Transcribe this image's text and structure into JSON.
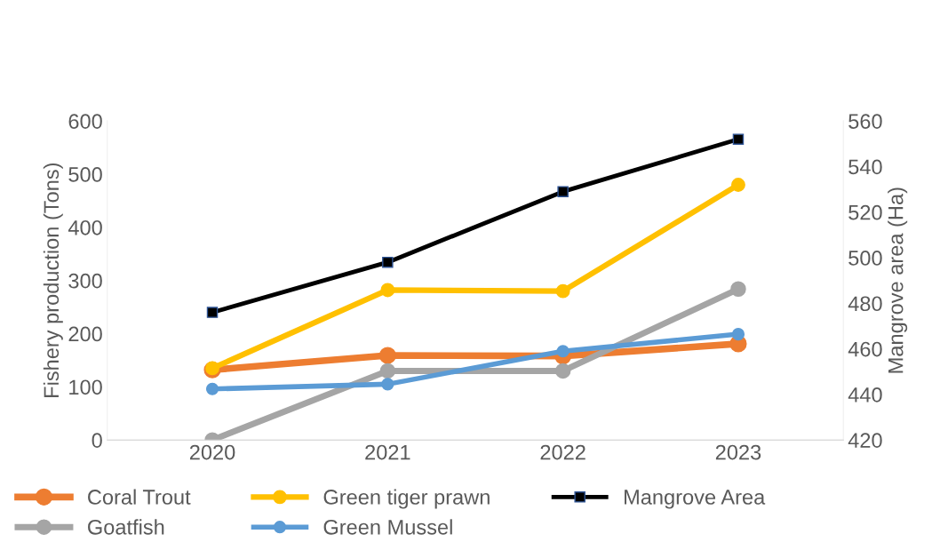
{
  "chart_data": {
    "type": "line",
    "ylabel": "Fishery production (Tons)",
    "y2label": "Mangrove area (Ha)",
    "categories": [
      "2020",
      "2021",
      "2022",
      "2023"
    ],
    "series": [
      {
        "name": "Coral Trout",
        "color": "#ed7d31",
        "marker": "circle",
        "values": [
          132,
          159,
          158,
          181
        ]
      },
      {
        "name": "Goatfish",
        "color": "#a5a5a5",
        "marker": "circle",
        "values": [
          0,
          130,
          130,
          284
        ]
      },
      {
        "name": "Green tiger prawn",
        "color": "#ffc000",
        "marker": "circle",
        "values": [
          135,
          282,
          280,
          480
        ]
      },
      {
        "name": "Green Mussel",
        "color": "#5b9bd5",
        "marker": "circle",
        "values": [
          96,
          105,
          167,
          199
        ]
      },
      {
        "name": "Mangrove Area",
        "color": "#000000",
        "marker": "square",
        "axis": "y2",
        "values": [
          476,
          498,
          529,
          552
        ]
      }
    ],
    "ylim": [
      0,
      600
    ],
    "yticks": [
      0,
      100,
      200,
      300,
      400,
      500,
      600
    ],
    "y2lim": [
      420,
      560
    ],
    "y2ticks": [
      420,
      440,
      460,
      480,
      500,
      520,
      540,
      560
    ],
    "grid": false,
    "legend": "bottom"
  }
}
